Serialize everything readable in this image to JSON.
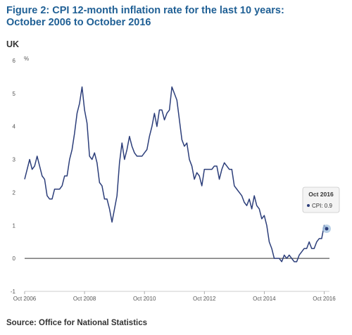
{
  "title_line1": "Figure 2: CPI 12-month inflation rate for the last 10 years:",
  "title_line2": "October 2006 to October 2016",
  "geography": "UK",
  "source": "Source: Office for National Statistics",
  "colors": {
    "title": "#206095",
    "line": "#2c3e7a",
    "highlight": "#a8c4e0"
  },
  "tooltip": {
    "title": "Oct 2016",
    "label": "CPI: 0.9"
  },
  "chart_data": {
    "type": "line",
    "ylabel": "%",
    "ylim": [
      -1,
      6
    ],
    "yticks": [
      -1,
      0,
      1,
      2,
      3,
      4,
      5,
      6
    ],
    "xticks": [
      "Oct 2006",
      "Oct 2008",
      "Oct 2010",
      "Oct 2012",
      "Oct 2014",
      "Oct 2016"
    ],
    "x_start": "2006-10",
    "x_end": "2016-10",
    "grid": false,
    "series": [
      {
        "name": "CPI",
        "values": [
          2.4,
          2.7,
          3.0,
          2.7,
          2.8,
          3.1,
          2.8,
          2.5,
          2.4,
          1.9,
          1.8,
          1.8,
          2.1,
          2.1,
          2.1,
          2.2,
          2.5,
          2.5,
          3.0,
          3.3,
          3.8,
          4.4,
          4.7,
          5.2,
          4.5,
          4.1,
          3.1,
          3.0,
          3.2,
          2.9,
          2.3,
          2.2,
          1.8,
          1.8,
          1.5,
          1.1,
          1.5,
          1.9,
          2.9,
          3.5,
          3.0,
          3.3,
          3.7,
          3.4,
          3.2,
          3.1,
          3.1,
          3.1,
          3.2,
          3.3,
          3.7,
          4.0,
          4.4,
          4.0,
          4.5,
          4.5,
          4.2,
          4.4,
          4.5,
          5.2,
          5.0,
          4.8,
          4.2,
          3.6,
          3.4,
          3.5,
          3.0,
          2.8,
          2.4,
          2.6,
          2.5,
          2.2,
          2.7,
          2.7,
          2.7,
          2.7,
          2.8,
          2.8,
          2.4,
          2.7,
          2.9,
          2.8,
          2.7,
          2.7,
          2.2,
          2.1,
          2.0,
          1.9,
          1.7,
          1.6,
          1.8,
          1.5,
          1.9,
          1.6,
          1.5,
          1.2,
          1.3,
          1.0,
          0.5,
          0.3,
          0.0,
          0.0,
          0.0,
          -0.1,
          0.1,
          0.0,
          0.1,
          0.0,
          -0.1,
          -0.1,
          0.1,
          0.2,
          0.3,
          0.3,
          0.5,
          0.3,
          0.3,
          0.5,
          0.6,
          0.6,
          1.0,
          0.9
        ]
      }
    ]
  }
}
